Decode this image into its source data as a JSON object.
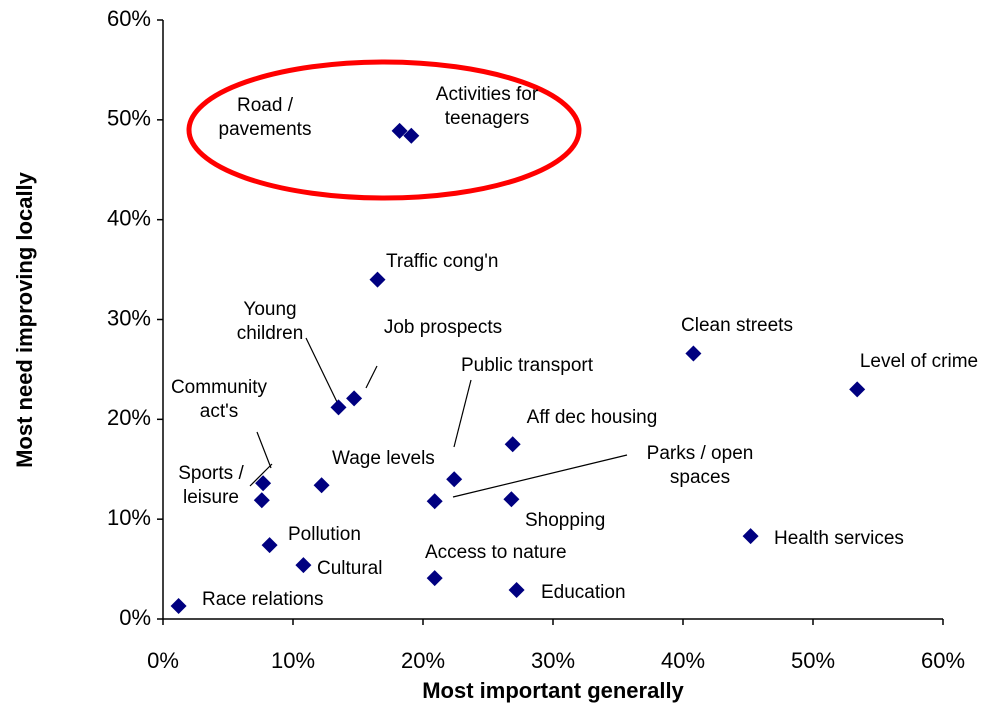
{
  "chart_data": {
    "type": "scatter",
    "xlabel": "Most important generally",
    "ylabel": "Most need improving locally",
    "color": "#000080",
    "highlight_color": "#ff0000",
    "xlim": [
      0,
      60
    ],
    "ylim": [
      0,
      60
    ],
    "xticks": [
      {
        "value": 0,
        "label": "0%"
      },
      {
        "value": 10,
        "label": "10%"
      },
      {
        "value": 20,
        "label": "20%"
      },
      {
        "value": 30,
        "label": "30%"
      },
      {
        "value": 40,
        "label": "40%"
      },
      {
        "value": 50,
        "label": "50%"
      },
      {
        "value": 60,
        "label": "60%"
      }
    ],
    "yticks": [
      {
        "value": 0,
        "label": "0%"
      },
      {
        "value": 10,
        "label": "10%"
      },
      {
        "value": 20,
        "label": "20%"
      },
      {
        "value": 30,
        "label": "30%"
      },
      {
        "value": 40,
        "label": "40%"
      },
      {
        "value": 50,
        "label": "50%"
      },
      {
        "value": 60,
        "label": "60%"
      }
    ],
    "points": [
      {
        "label": [
          "Road /",
          "pavements"
        ],
        "x": 18.2,
        "y": 48.9
      },
      {
        "label": [
          "Activities for",
          "teenagers"
        ],
        "x": 19.1,
        "y": 48.4
      },
      {
        "label": [
          "Traffic cong'n"
        ],
        "x": 16.5,
        "y": 34.0
      },
      {
        "label": [
          "Young",
          "children"
        ],
        "x": 13.5,
        "y": 21.2
      },
      {
        "label": [
          "Job prospects"
        ],
        "x": 14.7,
        "y": 22.1
      },
      {
        "label": [
          "Clean streets"
        ],
        "x": 40.8,
        "y": 26.6
      },
      {
        "label": [
          "Level of crime"
        ],
        "x": 53.4,
        "y": 23.0
      },
      {
        "label": [
          "Public transport"
        ],
        "x": 22.4,
        "y": 14.0
      },
      {
        "label": [
          "Aff dec housing"
        ],
        "x": 26.9,
        "y": 17.5
      },
      {
        "label": [
          "Community",
          "act's"
        ],
        "x": 7.7,
        "y": 13.6
      },
      {
        "label": [
          "Sports /",
          "leisure"
        ],
        "x": 7.6,
        "y": 11.9
      },
      {
        "label": [
          "Wage levels"
        ],
        "x": 12.2,
        "y": 13.4
      },
      {
        "label": [
          "Parks / open",
          "spaces"
        ],
        "x": 20.9,
        "y": 11.8
      },
      {
        "label": [
          "Shopping"
        ],
        "x": 26.8,
        "y": 12.0
      },
      {
        "label": [
          "Pollution"
        ],
        "x": 8.2,
        "y": 7.4
      },
      {
        "label": [
          "Health services"
        ],
        "x": 45.2,
        "y": 8.3
      },
      {
        "label": [
          "Cultural"
        ],
        "x": 10.8,
        "y": 5.4
      },
      {
        "label": [
          "Access to nature"
        ],
        "x": 20.9,
        "y": 4.1
      },
      {
        "label": [
          "Education"
        ],
        "x": 27.2,
        "y": 2.9
      },
      {
        "label": [
          "Race relations"
        ],
        "x": 1.2,
        "y": 1.3
      }
    ]
  }
}
